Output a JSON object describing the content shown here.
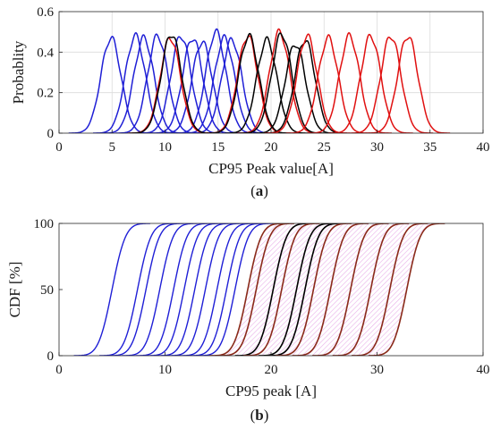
{
  "chart_data": [
    {
      "type": "line",
      "panel_label": "a",
      "xlabel": "CP95 Peak value[A]",
      "ylabel": "Probablity",
      "xlim": [
        0,
        40
      ],
      "ylim": [
        0,
        0.6
      ],
      "xticks": [
        "0",
        "5",
        "10",
        "15",
        "20",
        "25",
        "30",
        "35",
        "40"
      ],
      "yticks": [
        "0",
        "0.2",
        "0.4",
        "0.6"
      ],
      "grid": true,
      "colors": {
        "blue": "#1f1fd6",
        "black": "#000000",
        "red": "#e01010"
      },
      "series": [
        {
          "color": "blue",
          "center": 4.9,
          "peak": 0.47
        },
        {
          "color": "blue",
          "center": 7.2,
          "peak": 0.48
        },
        {
          "color": "blue",
          "center": 8.0,
          "peak": 0.47
        },
        {
          "color": "blue",
          "center": 9.3,
          "peak": 0.48
        },
        {
          "color": "blue",
          "center": 11.5,
          "peak": 0.48
        },
        {
          "color": "blue",
          "center": 12.6,
          "peak": 0.47
        },
        {
          "color": "blue",
          "center": 13.5,
          "peak": 0.45
        },
        {
          "color": "blue",
          "center": 14.8,
          "peak": 0.5
        },
        {
          "color": "blue",
          "center": 15.6,
          "peak": 0.47
        },
        {
          "color": "blue",
          "center": 16.3,
          "peak": 0.46
        },
        {
          "color": "red",
          "center": 10.5,
          "peak": 0.47
        },
        {
          "color": "black",
          "center": 10.6,
          "peak": 0.49
        },
        {
          "color": "red",
          "center": 17.8,
          "peak": 0.48
        },
        {
          "color": "black",
          "center": 17.9,
          "peak": 0.48
        },
        {
          "color": "black",
          "center": 19.6,
          "peak": 0.46
        },
        {
          "color": "red",
          "center": 20.8,
          "peak": 0.5
        },
        {
          "color": "black",
          "center": 21.0,
          "peak": 0.49
        },
        {
          "color": "black",
          "center": 22.3,
          "peak": 0.44
        },
        {
          "color": "black",
          "center": 23.2,
          "peak": 0.46
        },
        {
          "color": "red",
          "center": 23.4,
          "peak": 0.48
        },
        {
          "color": "red",
          "center": 25.4,
          "peak": 0.47
        },
        {
          "color": "red",
          "center": 27.4,
          "peak": 0.48
        },
        {
          "color": "red",
          "center": 29.4,
          "peak": 0.48
        },
        {
          "color": "red",
          "center": 31.3,
          "peak": 0.48
        },
        {
          "color": "red",
          "center": 32.9,
          "peak": 0.48
        }
      ]
    },
    {
      "type": "line",
      "panel_label": "b",
      "xlabel": "CP95 peak [A]",
      "ylabel": "CDF [%]",
      "xlim": [
        0,
        40
      ],
      "ylim": [
        0,
        100
      ],
      "xticks": [
        "0",
        "10",
        "20",
        "30",
        "40"
      ],
      "yticks": [
        "0",
        "50",
        "100"
      ],
      "grid": false,
      "colors": {
        "blue": "#1f1fd6",
        "black": "#000000",
        "red": "#e01010",
        "brown": "#8a2a1a",
        "pinkhatch": "#e8b0e8"
      },
      "series": [
        {
          "color": "blue",
          "median": 5.0
        },
        {
          "color": "blue",
          "median": 7.4
        },
        {
          "color": "blue",
          "median": 8.2
        },
        {
          "color": "blue",
          "median": 9.5
        },
        {
          "color": "blue",
          "median": 10.8
        },
        {
          "color": "blue",
          "median": 11.8
        },
        {
          "color": "blue",
          "median": 12.8
        },
        {
          "color": "blue",
          "median": 13.8
        },
        {
          "color": "blue",
          "median": 14.9
        },
        {
          "color": "blue",
          "median": 15.8
        },
        {
          "color": "blue",
          "median": 16.6
        },
        {
          "color": "brown",
          "median": 17.8
        },
        {
          "color": "brown",
          "median": 18.6
        },
        {
          "color": "black",
          "median": 20.2
        },
        {
          "color": "brown",
          "median": 21.0
        },
        {
          "color": "black",
          "median": 22.4
        },
        {
          "color": "black",
          "median": 23.2
        },
        {
          "color": "brown",
          "median": 24.0
        },
        {
          "color": "brown",
          "median": 25.6
        },
        {
          "color": "brown",
          "median": 27.5
        },
        {
          "color": "brown",
          "median": 29.4
        },
        {
          "color": "brown",
          "median": 31.2
        },
        {
          "color": "brown",
          "median": 32.8
        }
      ]
    }
  ]
}
